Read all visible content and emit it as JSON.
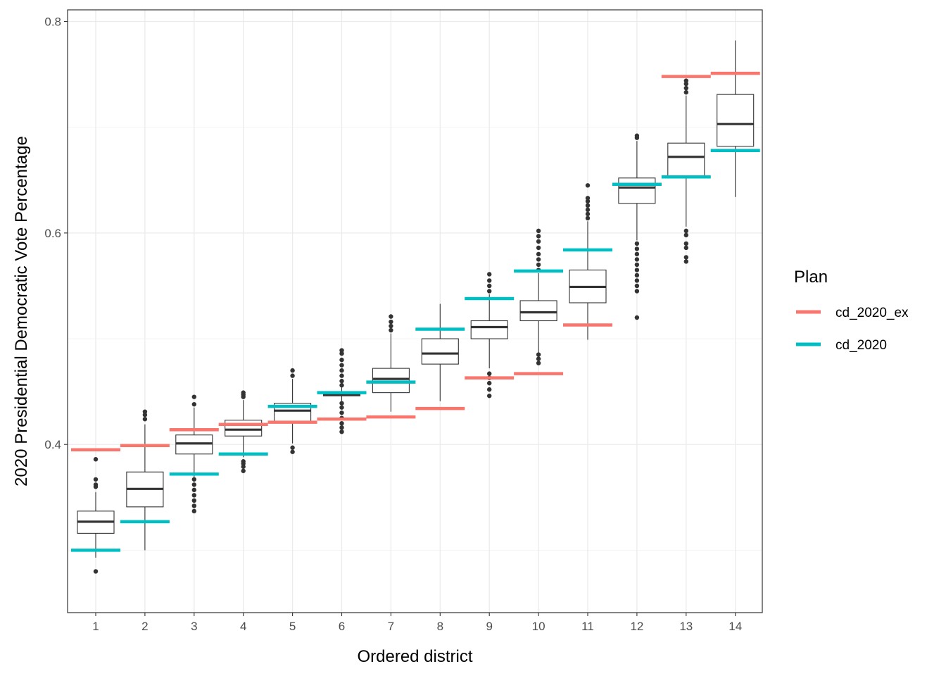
{
  "chart_data": {
    "type": "box",
    "title": "",
    "xlabel": "Ordered district",
    "ylabel": "2020 Presidential Democratic Vote Percentage",
    "categories": [
      "1",
      "2",
      "3",
      "4",
      "5",
      "6",
      "7",
      "8",
      "9",
      "10",
      "11",
      "12",
      "13",
      "14"
    ],
    "ylim": [
      0.241,
      0.811
    ],
    "yticks": [
      0.4,
      0.6,
      0.8
    ],
    "ytick_labels": [
      "0.4",
      "0.6",
      "0.8"
    ],
    "grid": true,
    "legend": {
      "title": "Plan",
      "position": "right",
      "entries": [
        {
          "label": "cd_2020_ex",
          "color": "#F8766D"
        },
        {
          "label": "cd_2020",
          "color": "#00BFC4"
        }
      ]
    },
    "boxes": [
      {
        "q1": 0.316,
        "median": 0.327,
        "q3": 0.337,
        "whisker_low": 0.293,
        "whisker_high": 0.355,
        "outliers": [
          0.36,
          0.362,
          0.367,
          0.386,
          0.28
        ]
      },
      {
        "q1": 0.341,
        "median": 0.358,
        "q3": 0.374,
        "whisker_low": 0.3,
        "whisker_high": 0.419,
        "outliers": [
          0.424,
          0.428,
          0.431
        ]
      },
      {
        "q1": 0.391,
        "median": 0.401,
        "q3": 0.409,
        "whisker_low": 0.369,
        "whisker_high": 0.435,
        "outliers": [
          0.337,
          0.342,
          0.347,
          0.352,
          0.357,
          0.362,
          0.367,
          0.438,
          0.445
        ]
      },
      {
        "q1": 0.408,
        "median": 0.414,
        "q3": 0.423,
        "whisker_low": 0.388,
        "whisker_high": 0.442,
        "outliers": [
          0.375,
          0.379,
          0.382,
          0.384,
          0.445,
          0.447,
          0.449
        ]
      },
      {
        "q1": 0.421,
        "median": 0.432,
        "q3": 0.439,
        "whisker_low": 0.401,
        "whisker_high": 0.462,
        "outliers": [
          0.393,
          0.397,
          0.465,
          0.47
        ]
      },
      {
        "q1": 0.446,
        "median": 0.447,
        "q3": 0.449,
        "whisker_low": 0.441,
        "whisker_high": 0.454,
        "outliers": [
          0.412,
          0.416,
          0.42,
          0.425,
          0.43,
          0.435,
          0.439,
          0.456,
          0.46,
          0.465,
          0.47,
          0.475,
          0.48,
          0.486,
          0.489
        ]
      },
      {
        "q1": 0.449,
        "median": 0.462,
        "q3": 0.472,
        "whisker_low": 0.431,
        "whisker_high": 0.505,
        "outliers": [
          0.508,
          0.512,
          0.516,
          0.521
        ]
      },
      {
        "q1": 0.476,
        "median": 0.486,
        "q3": 0.5,
        "whisker_low": 0.441,
        "whisker_high": 0.533,
        "outliers": []
      },
      {
        "q1": 0.5,
        "median": 0.511,
        "q3": 0.517,
        "whisker_low": 0.472,
        "whisker_high": 0.542,
        "outliers": [
          0.446,
          0.452,
          0.458,
          0.463,
          0.467,
          0.545,
          0.55,
          0.555,
          0.561
        ]
      },
      {
        "q1": 0.517,
        "median": 0.525,
        "q3": 0.536,
        "whisker_low": 0.487,
        "whisker_high": 0.562,
        "outliers": [
          0.477,
          0.481,
          0.485,
          0.565,
          0.57,
          0.575,
          0.58,
          0.586,
          0.592,
          0.597,
          0.602
        ]
      },
      {
        "q1": 0.534,
        "median": 0.549,
        "q3": 0.565,
        "whisker_low": 0.499,
        "whisker_high": 0.611,
        "outliers": [
          0.614,
          0.618,
          0.622,
          0.626,
          0.63,
          0.633,
          0.645
        ]
      },
      {
        "q1": 0.628,
        "median": 0.643,
        "q3": 0.652,
        "whisker_low": 0.593,
        "whisker_high": 0.687,
        "outliers": [
          0.52,
          0.545,
          0.55,
          0.555,
          0.56,
          0.565,
          0.57,
          0.575,
          0.58,
          0.585,
          0.59,
          0.69,
          0.692
        ]
      },
      {
        "q1": 0.652,
        "median": 0.672,
        "q3": 0.685,
        "whisker_low": 0.606,
        "whisker_high": 0.73,
        "outliers": [
          0.573,
          0.577,
          0.586,
          0.59,
          0.598,
          0.602,
          0.733,
          0.737,
          0.741,
          0.744
        ]
      },
      {
        "q1": 0.682,
        "median": 0.703,
        "q3": 0.731,
        "whisker_low": 0.634,
        "whisker_high": 0.782,
        "outliers": []
      }
    ],
    "series": [
      {
        "name": "cd_2020_ex",
        "color": "#F8766D",
        "values": [
          0.395,
          0.399,
          0.414,
          0.419,
          0.421,
          0.424,
          0.426,
          0.434,
          0.463,
          0.467,
          0.513,
          0.646,
          0.748,
          0.751
        ]
      },
      {
        "name": "cd_2020",
        "color": "#00BFC4",
        "values": [
          0.3,
          0.327,
          0.372,
          0.391,
          0.436,
          0.449,
          0.459,
          0.509,
          0.538,
          0.564,
          0.584,
          0.646,
          0.653,
          0.678
        ]
      }
    ]
  }
}
